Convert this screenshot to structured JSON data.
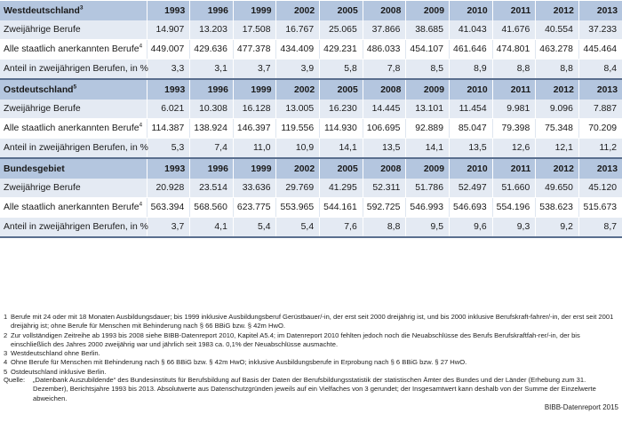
{
  "years": [
    "1993",
    "1996",
    "1999",
    "2002",
    "2005",
    "2008",
    "2009",
    "2010",
    "2011",
    "2012",
    "2013"
  ],
  "sections": [
    {
      "title": "Westdeutschland",
      "title_sup": "3",
      "rows": [
        {
          "label": "Zweijährige Berufe",
          "sup": "",
          "values": [
            "14.907",
            "13.203",
            "17.508",
            "16.767",
            "25.065",
            "37.866",
            "38.685",
            "41.043",
            "41.676",
            "40.554",
            "37.233"
          ]
        },
        {
          "label": "Alle staatlich anerkannten Berufe",
          "sup": "4",
          "values": [
            "449.007",
            "429.636",
            "477.378",
            "434.409",
            "429.231",
            "486.033",
            "454.107",
            "461.646",
            "474.801",
            "463.278",
            "445.464"
          ]
        },
        {
          "label": "Anteil in zweijährigen Berufen, in %",
          "sup": "",
          "values": [
            "3,3",
            "3,1",
            "3,7",
            "3,9",
            "5,8",
            "7,8",
            "8,5",
            "8,9",
            "8,8",
            "8,8",
            "8,4"
          ]
        }
      ]
    },
    {
      "title": "Ostdeutschland",
      "title_sup": "5",
      "rows": [
        {
          "label": "Zweijährige Berufe",
          "sup": "",
          "values": [
            "6.021",
            "10.308",
            "16.128",
            "13.005",
            "16.230",
            "14.445",
            "13.101",
            "11.454",
            "9.981",
            "9.096",
            "7.887"
          ]
        },
        {
          "label": "Alle staatlich anerkannten Berufe",
          "sup": "4",
          "values": [
            "114.387",
            "138.924",
            "146.397",
            "119.556",
            "114.930",
            "106.695",
            "92.889",
            "85.047",
            "79.398",
            "75.348",
            "70.209"
          ]
        },
        {
          "label": "Anteil in zweijährigen Berufen, in %",
          "sup": "",
          "values": [
            "5,3",
            "7,4",
            "11,0",
            "10,9",
            "14,1",
            "13,5",
            "14,1",
            "13,5",
            "12,6",
            "12,1",
            "11,2"
          ]
        }
      ]
    },
    {
      "title": "Bundesgebiet",
      "title_sup": "",
      "rows": [
        {
          "label": "Zweijährige Berufe",
          "sup": "",
          "values": [
            "20.928",
            "23.514",
            "33.636",
            "29.769",
            "41.295",
            "52.311",
            "51.786",
            "52.497",
            "51.660",
            "49.650",
            "45.120"
          ]
        },
        {
          "label": "Alle staatlich anerkannten Berufe",
          "sup": "4",
          "values": [
            "563.394",
            "568.560",
            "623.775",
            "553.965",
            "544.161",
            "592.725",
            "546.993",
            "546.693",
            "554.196",
            "538.623",
            "515.673"
          ]
        },
        {
          "label": "Anteil in zweijährigen Berufen, in %",
          "sup": "",
          "values": [
            "3,7",
            "4,1",
            "5,4",
            "5,4",
            "7,6",
            "8,8",
            "9,5",
            "9,6",
            "9,3",
            "9,2",
            "8,7"
          ]
        }
      ]
    }
  ],
  "footnotes": [
    {
      "mark": "1",
      "text": "Berufe mit 24 oder mit 18 Monaten Ausbildungsdauer; bis 1999 inklusive Ausbildungsberuf Gerüstbauer/-in, der erst seit 2000 dreijährig ist, und bis 2000 inklusive Berufskraft-fahrer/-in, der erst seit 2001 dreijährig ist; ohne Berufe für Menschen mit Behinderung nach § 66 BBiG bzw. § 42m HwO."
    },
    {
      "mark": "2",
      "text": "Zur vollständigen Zeitreihe ab 1993 bis 2008 siehe BIBB-Datenreport 2010, Kapitel A5.4; im Datenreport 2010 fehlten jedoch noch die Neuabschlüsse des Berufs Berufskraftfah-rer/-in, der bis einschließlich des Jahres 2000 zweijährig war und jährlich seit 1983 ca. 0,1% der Neuabschlüsse ausmachte."
    },
    {
      "mark": "3",
      "text": "Westdeutschland ohne Berlin."
    },
    {
      "mark": "4",
      "text": "Ohne Berufe für Menschen mit Behinderung nach § 66 BBiG bzw. § 42m HwO; inklusive Ausbildungsberufe in Erprobung nach § 6 BBiG bzw. § 27 HwO."
    },
    {
      "mark": "5",
      "text": "Ostdeutschland inklusive Berlin."
    }
  ],
  "source_label": "Quelle:",
  "source_text": "„Datenbank Auszubildende“ des Bundesinstituts für Berufsbildung auf Basis der Daten der Berufsbildungsstatistik der statistischen Ämter des Bundes und der Länder (Erhebung zum 31. Dezember), Berichtsjahre 1993 bis 2013. Absolutwerte aus Datenschutzgründen jeweils auf ein Vielfaches von 3 gerundet; der Insgesamtwert kann deshalb von der Summe der Einzelwerte abweichen.",
  "credit": "BIBB-Datenreport 2015"
}
